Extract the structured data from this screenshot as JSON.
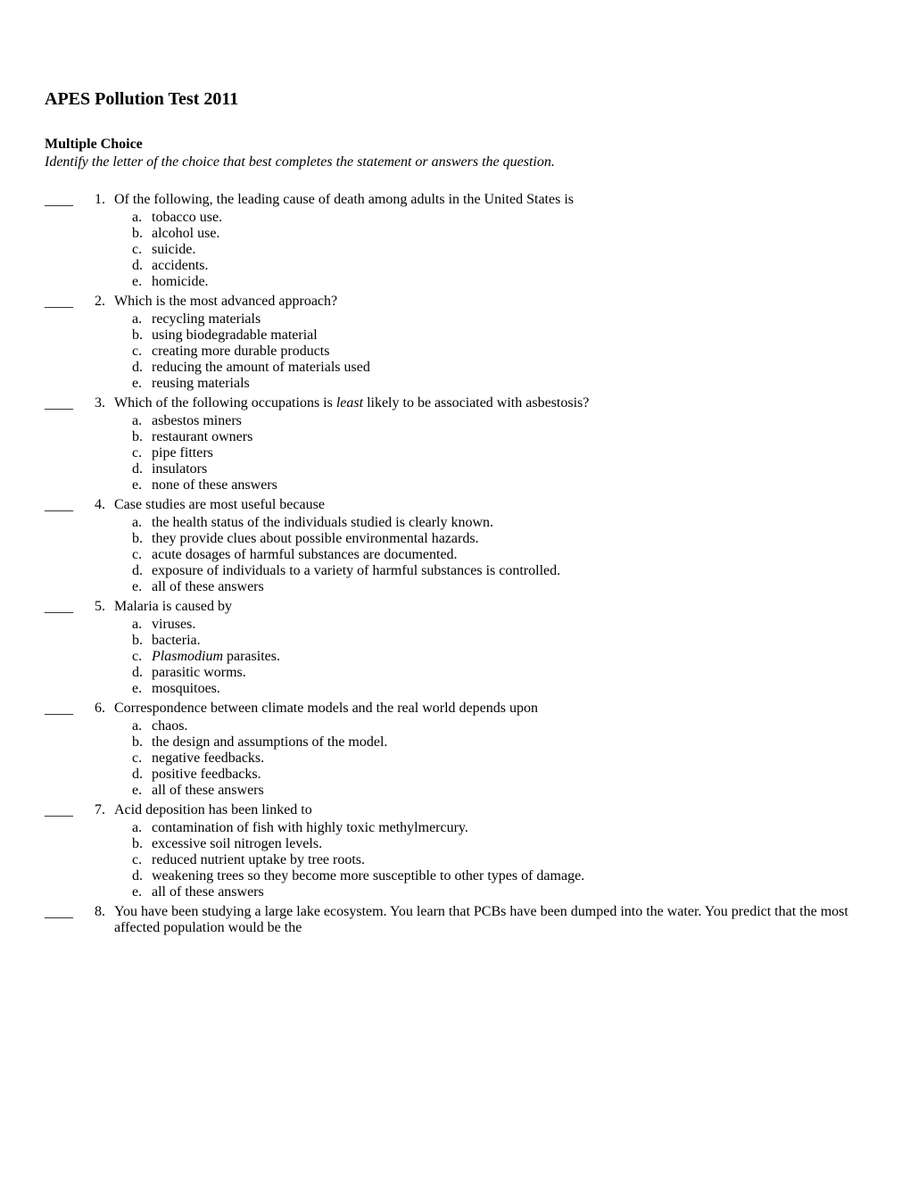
{
  "title": "APES Pollution Test 2011",
  "section_heading": "Multiple Choice",
  "instructions": "Identify the letter of the choice that best completes the statement or answers the question.",
  "blank": "____",
  "questions": [
    {
      "number": "1.",
      "stem": "Of the following, the leading cause of death among adults in the United States is",
      "choices": [
        {
          "letter": "a.",
          "text": "tobacco use."
        },
        {
          "letter": "b.",
          "text": "alcohol use."
        },
        {
          "letter": "c.",
          "text": "suicide."
        },
        {
          "letter": "d.",
          "text": "accidents."
        },
        {
          "letter": "e.",
          "text": "homicide."
        }
      ]
    },
    {
      "number": "2.",
      "stem": "Which is the most advanced approach?",
      "choices": [
        {
          "letter": "a.",
          "text": "recycling materials"
        },
        {
          "letter": "b.",
          "text": "using biodegradable material"
        },
        {
          "letter": "c.",
          "text": "creating more durable products"
        },
        {
          "letter": "d.",
          "text": "reducing the amount of materials used"
        },
        {
          "letter": "e.",
          "text": "reusing materials"
        }
      ]
    },
    {
      "number": "3.",
      "stem_pre": "Which of the following occupations is ",
      "stem_italic": "least",
      "stem_post": " likely to be associated with asbestosis?",
      "choices": [
        {
          "letter": "a.",
          "text": "asbestos miners"
        },
        {
          "letter": "b.",
          "text": "restaurant owners"
        },
        {
          "letter": "c.",
          "text": "pipe fitters"
        },
        {
          "letter": "d.",
          "text": "insulators"
        },
        {
          "letter": "e.",
          "text": "none of these answers"
        }
      ]
    },
    {
      "number": "4.",
      "stem": "Case studies are most useful because",
      "choices": [
        {
          "letter": "a.",
          "text": "the health status of the individuals studied is clearly known."
        },
        {
          "letter": "b.",
          "text": "they provide clues about possible environmental hazards."
        },
        {
          "letter": "c.",
          "text": "acute dosages of harmful substances are documented."
        },
        {
          "letter": "d.",
          "text": "exposure of individuals to a variety of harmful substances is controlled."
        },
        {
          "letter": "e.",
          "text": "all of these answers"
        }
      ]
    },
    {
      "number": "5.",
      "stem": "Malaria is caused by",
      "choices": [
        {
          "letter": "a.",
          "text": "viruses."
        },
        {
          "letter": "b.",
          "text": "bacteria."
        },
        {
          "letter": "c.",
          "text_pre_italic": "Plasmodium",
          "text_post": " parasites."
        },
        {
          "letter": "d.",
          "text": "parasitic worms."
        },
        {
          "letter": "e.",
          "text": "mosquitoes."
        }
      ]
    },
    {
      "number": "6.",
      "stem": "Correspondence between climate models and the real world depends upon",
      "choices": [
        {
          "letter": "a.",
          "text": "chaos."
        },
        {
          "letter": "b.",
          "text": "the design and assumptions of the model."
        },
        {
          "letter": "c.",
          "text": "negative feedbacks."
        },
        {
          "letter": "d.",
          "text": "positive feedbacks."
        },
        {
          "letter": "e.",
          "text": "all of these answers"
        }
      ]
    },
    {
      "number": "7.",
      "stem": "Acid deposition has been linked to",
      "choices": [
        {
          "letter": "a.",
          "text": "contamination of fish with highly toxic methylmercury."
        },
        {
          "letter": "b.",
          "text": "excessive soil nitrogen levels."
        },
        {
          "letter": "c.",
          "text": "reduced nutrient uptake by tree roots."
        },
        {
          "letter": "d.",
          "text": "weakening trees so they become more susceptible to other types of damage."
        },
        {
          "letter": "e.",
          "text": "all of these answers"
        }
      ]
    },
    {
      "number": "8.",
      "stem": "You have been studying a large lake ecosystem. You learn that PCBs have been dumped into the water. You predict that the most affected population would be the",
      "choices": []
    }
  ]
}
